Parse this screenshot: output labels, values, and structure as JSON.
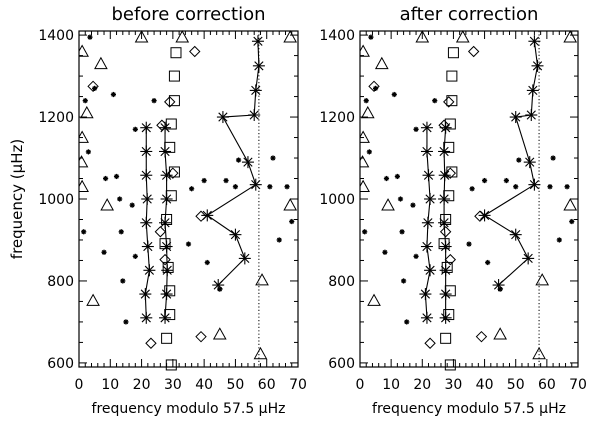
{
  "chart_data": [
    {
      "type": "scatter",
      "title": "before correction",
      "xlabel": "frequency modulo 57.5 μHz",
      "ylabel": "frequency (μHz)",
      "xlim": [
        0,
        70
      ],
      "ylim": [
        590,
        1410
      ],
      "xticks": [
        0,
        10,
        20,
        30,
        40,
        50,
        60,
        70
      ],
      "yticks": [
        600,
        800,
        1000,
        1200,
        1400
      ],
      "vline_x": 57.5,
      "grid": false,
      "lines": [
        {
          "name": "",
          "marker": "asterisk",
          "points": [
            [
              21.5,
              710
            ],
            [
              21.2,
              768
            ],
            [
              22.5,
              826
            ],
            [
              22,
              884
            ],
            [
              21.5,
              942
            ],
            [
              21.8,
              1000
            ],
            [
              21.5,
              1058
            ],
            [
              21.5,
              1116
            ],
            [
              21.5,
              1174
            ]
          ]
        },
        {
          "name": "",
          "marker": "asterisk",
          "points": [
            [
              27.5,
              710
            ],
            [
              28,
              768
            ],
            [
              28.2,
              826
            ],
            [
              28,
              884
            ],
            [
              27.5,
              942
            ],
            [
              28,
              1000
            ],
            [
              28,
              1058
            ],
            [
              27.5,
              1116
            ],
            [
              27.5,
              1174
            ]
          ]
        },
        {
          "name": "",
          "marker": "asterisk",
          "points": [
            [
              44.5,
              790
            ],
            [
              53,
              855
            ],
            [
              50,
              913
            ],
            [
              41,
              960
            ],
            [
              56.5,
              1035
            ],
            [
              54,
              1090
            ],
            [
              46,
              1200
            ],
            [
              56,
              1205
            ],
            [
              56.5,
              1265
            ],
            [
              57.5,
              1325
            ],
            [
              57.2,
              1385
            ]
          ]
        }
      ],
      "markers": {
        "square": [
          [
            28,
            660
          ],
          [
            29,
            718
          ],
          [
            29,
            776
          ],
          [
            28.5,
            833
          ],
          [
            27.5,
            891
          ],
          [
            28,
            950
          ],
          [
            29.5,
            1008
          ],
          [
            30.5,
            1066
          ],
          [
            29,
            1126
          ],
          [
            29.5,
            1183
          ],
          [
            30.5,
            1240
          ],
          [
            30.5,
            1300
          ],
          [
            31,
            1357
          ],
          [
            29.5,
            595
          ]
        ],
        "diamond": [
          [
            23,
            648
          ],
          [
            39,
            664
          ],
          [
            27.5,
            852
          ],
          [
            26,
            920
          ],
          [
            39,
            958
          ],
          [
            30,
            1063
          ],
          [
            26.5,
            1180
          ],
          [
            29,
            1237
          ],
          [
            4.5,
            1275
          ],
          [
            37,
            1360
          ]
        ],
        "triangle": [
          [
            45,
            670
          ],
          [
            58,
            622
          ],
          [
            4.5,
            752
          ],
          [
            58.5,
            802
          ],
          [
            67.5,
            985
          ],
          [
            9,
            985
          ],
          [
            1,
            1030
          ],
          [
            0.8,
            1090
          ],
          [
            1,
            1150
          ],
          [
            2.5,
            1210
          ],
          [
            7,
            1330
          ],
          [
            20,
            1395
          ],
          [
            33,
            1395
          ],
          [
            67.5,
            1395
          ],
          [
            1,
            1360
          ]
        ],
        "small_star": [
          [
            3.5,
            1395
          ],
          [
            5,
            1270
          ],
          [
            11,
            1255
          ],
          [
            2,
            1240
          ],
          [
            24,
            1240
          ],
          [
            18,
            1170
          ],
          [
            3,
            1115
          ],
          [
            8.5,
            1050
          ],
          [
            12,
            1055
          ],
          [
            13,
            1000
          ],
          [
            17,
            985
          ],
          [
            36,
            1025
          ],
          [
            40,
            1045
          ],
          [
            47,
            1045
          ],
          [
            50,
            1030
          ],
          [
            51,
            1095
          ],
          [
            61,
            1030
          ],
          [
            66.5,
            1030
          ],
          [
            62,
            1100
          ],
          [
            13.5,
            920
          ],
          [
            8,
            870
          ],
          [
            18,
            860
          ],
          [
            1.5,
            920
          ],
          [
            35,
            890
          ],
          [
            64,
            900
          ],
          [
            68,
            945
          ],
          [
            41,
            845
          ],
          [
            14,
            800
          ],
          [
            15,
            700
          ],
          [
            45,
            780
          ]
        ]
      }
    },
    {
      "type": "scatter",
      "title": "after correction",
      "xlabel": "frequency modulo 57.5 μHz",
      "ylabel": "",
      "xlim": [
        0,
        70
      ],
      "ylim": [
        590,
        1410
      ],
      "xticks": [
        0,
        10,
        20,
        30,
        40,
        50,
        60,
        70
      ],
      "yticks": [
        600,
        800,
        1000,
        1200,
        1400
      ],
      "vline_x": 57.5,
      "grid": false,
      "lines": [
        {
          "name": "",
          "marker": "asterisk",
          "points": [
            [
              21.5,
              710
            ],
            [
              21,
              768
            ],
            [
              22.5,
              826
            ],
            [
              21.5,
              884
            ],
            [
              21.8,
              942
            ],
            [
              22.5,
              1000
            ],
            [
              22,
              1058
            ],
            [
              21.5,
              1116
            ],
            [
              21.5,
              1174
            ]
          ]
        },
        {
          "name": "",
          "marker": "asterisk",
          "points": [
            [
              27.5,
              710
            ],
            [
              27.5,
              768
            ],
            [
              27.5,
              826
            ],
            [
              27.5,
              884
            ],
            [
              27,
              942
            ],
            [
              27,
              1000
            ],
            [
              27.2,
              1058
            ],
            [
              27,
              1116
            ],
            [
              27.5,
              1174
            ]
          ]
        },
        {
          "name": "",
          "marker": "asterisk",
          "points": [
            [
              44.5,
              790
            ],
            [
              54,
              855
            ],
            [
              50,
              913
            ],
            [
              40,
              960
            ],
            [
              56,
              1035
            ],
            [
              54.5,
              1090
            ],
            [
              50,
              1200
            ],
            [
              55,
              1205
            ],
            [
              55.5,
              1265
            ],
            [
              57,
              1325
            ],
            [
              56,
              1385
            ]
          ]
        }
      ],
      "markers": {
        "square": [
          [
            27.5,
            660
          ],
          [
            28.5,
            718
          ],
          [
            29,
            776
          ],
          [
            28,
            833
          ],
          [
            27,
            891
          ],
          [
            27.5,
            950
          ],
          [
            28.5,
            1008
          ],
          [
            29.5,
            1066
          ],
          [
            28.5,
            1126
          ],
          [
            29,
            1183
          ],
          [
            29.5,
            1240
          ],
          [
            29.5,
            1300
          ],
          [
            30,
            1357
          ],
          [
            29,
            595
          ]
        ],
        "diamond": [
          [
            22.5,
            648
          ],
          [
            39,
            664
          ],
          [
            29,
            852
          ],
          [
            27.5,
            920
          ],
          [
            38.5,
            958
          ],
          [
            29,
            1063
          ],
          [
            27,
            1180
          ],
          [
            28.5,
            1237
          ],
          [
            4.5,
            1275
          ],
          [
            36.5,
            1360
          ]
        ],
        "triangle": [
          [
            45,
            670
          ],
          [
            57.5,
            622
          ],
          [
            4.5,
            752
          ],
          [
            58.5,
            802
          ],
          [
            67.5,
            985
          ],
          [
            9,
            985
          ],
          [
            1,
            1030
          ],
          [
            0.8,
            1090
          ],
          [
            1,
            1150
          ],
          [
            2.5,
            1210
          ],
          [
            7,
            1330
          ],
          [
            20,
            1395
          ],
          [
            33,
            1395
          ],
          [
            67.5,
            1395
          ],
          [
            1,
            1360
          ]
        ],
        "small_star": [
          [
            3.5,
            1395
          ],
          [
            5,
            1270
          ],
          [
            11,
            1255
          ],
          [
            2,
            1240
          ],
          [
            24,
            1240
          ],
          [
            18,
            1170
          ],
          [
            3,
            1115
          ],
          [
            8.5,
            1050
          ],
          [
            12,
            1055
          ],
          [
            13,
            1000
          ],
          [
            17,
            985
          ],
          [
            36,
            1025
          ],
          [
            40,
            1045
          ],
          [
            47,
            1045
          ],
          [
            50,
            1030
          ],
          [
            51,
            1095
          ],
          [
            61,
            1030
          ],
          [
            66.5,
            1030
          ],
          [
            62,
            1100
          ],
          [
            13.5,
            920
          ],
          [
            8,
            870
          ],
          [
            18,
            860
          ],
          [
            1.5,
            920
          ],
          [
            35,
            890
          ],
          [
            64,
            900
          ],
          [
            68,
            945
          ],
          [
            41,
            845
          ],
          [
            14,
            800
          ],
          [
            15,
            700
          ],
          [
            45,
            780
          ]
        ]
      }
    }
  ]
}
